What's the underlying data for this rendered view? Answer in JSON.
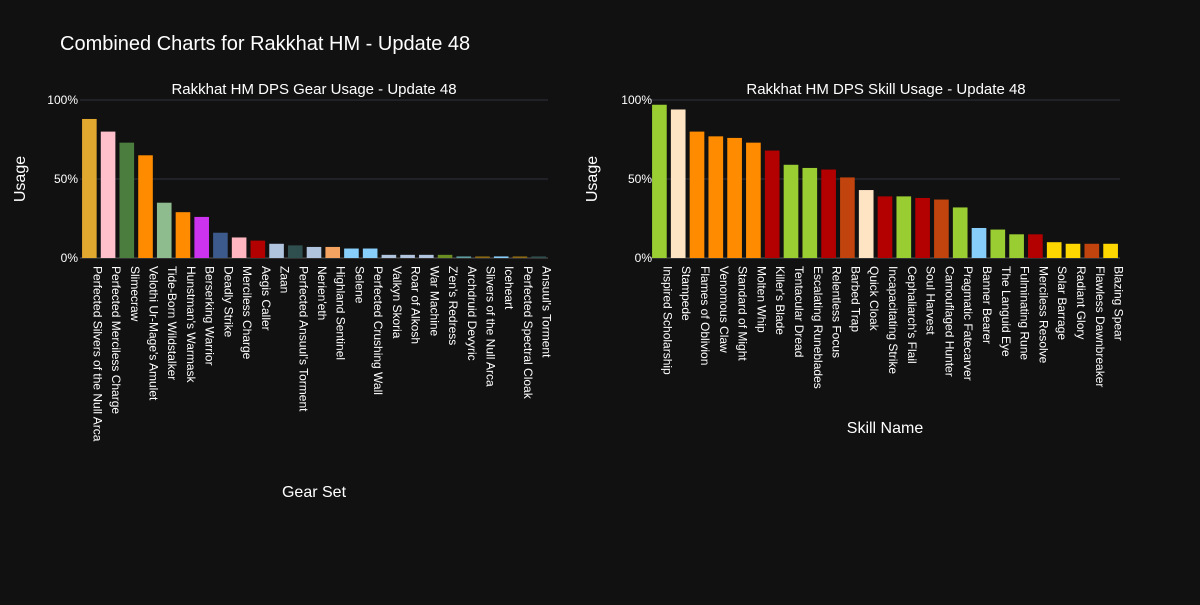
{
  "figure_title": "Combined Charts for Rakkhat HM - Update 48",
  "colors": {
    "background": "#111111",
    "text": "#ffffff",
    "grid": "#2f3340",
    "axis": "#555555"
  },
  "chart_data": [
    {
      "type": "bar",
      "title": "Rakkhat HM DPS Gear Usage - Update 48",
      "xlabel": "Gear Set",
      "ylabel": "Usage",
      "ylim": [
        0,
        100
      ],
      "yticks": [
        "0%",
        "50%",
        "100%"
      ],
      "grid": true,
      "categories": [
        "Perfected Silvers of the Null Arca",
        "Perfected Merciless Charge",
        "Slimecraw",
        "Velothi Ur-Mage's Amulet",
        "Tide-Born Wildstalker",
        "Hunstman's Warmask",
        "Berserking Warrior",
        "Deadly Strike",
        "Merciless Charge",
        "Aegis Caller",
        "Zaan",
        "Perfected Ansuul's Torment",
        "Nerien'eth",
        "Highland Sentinel",
        "Selene",
        "Perfected Crushing Wall",
        "Valkyn Skoria",
        "Roar of Alkosh",
        "War Machine",
        "Z'en's Redress",
        "Archdruid Devyric",
        "Slivers of the Null Arca",
        "Iceheart",
        "Perfected Spectral Cloak",
        "Ansuul's Torment"
      ],
      "values": [
        88,
        80,
        73,
        65,
        35,
        29,
        26,
        16,
        13,
        11,
        9,
        8,
        7,
        7,
        6,
        6,
        2,
        2,
        2,
        2,
        1,
        1,
        1,
        1,
        1
      ],
      "bar_colors": [
        "#e0a82e",
        "#ffc0cb",
        "#4b7d3f",
        "#ff8c00",
        "#8fbc8f",
        "#ff8c00",
        "#cc33ee",
        "#3d5a8c",
        "#ffb6c1",
        "#b30000",
        "#b0c4de",
        "#2f4f4f",
        "#b0c4de",
        "#f4a460",
        "#87cefa",
        "#87cefa",
        "#b0c4de",
        "#b0c4de",
        "#b0c4de",
        "#6b8e23",
        "#5f9ea0",
        "#8b6914",
        "#87cefa",
        "#8b6914",
        "#2f4f4f"
      ]
    },
    {
      "type": "bar",
      "title": "Rakkhat HM DPS Skill Usage - Update 48",
      "xlabel": "Skill Name",
      "ylabel": "Usage",
      "ylim": [
        0,
        100
      ],
      "yticks": [
        "0%",
        "50%",
        "100%"
      ],
      "grid": true,
      "categories": [
        "Inspired Scholarship",
        "Stampede",
        "Flames of Oblivion",
        "Venomous Claw",
        "Standard of Might",
        "Molten Whip",
        "Killer's Blade",
        "Tentacular Dread",
        "Escalating Runeblades",
        "Relentless Focus",
        "Barbed Trap",
        "Quick Cloak",
        "Incapacitating Strike",
        "Cephaliarch's Flail",
        "Soul Harvest",
        "Camouflaged Hunter",
        "Pragmatic Fatecarver",
        "Banner Bearer",
        "The Languid Eye",
        "Fulminating Rune",
        "Merciless Resolve",
        "Solar Barrage",
        "Radiant Glory",
        "Flawless Dawnbreaker",
        "Blazing Spear"
      ],
      "values": [
        97,
        94,
        80,
        77,
        76,
        73,
        68,
        59,
        57,
        56,
        51,
        43,
        39,
        39,
        38,
        37,
        32,
        19,
        18,
        15,
        15,
        10,
        9,
        9,
        9
      ],
      "bar_colors": [
        "#9acd32",
        "#ffe4c4",
        "#ff8c00",
        "#ff8c00",
        "#ff8c00",
        "#ff8c00",
        "#b30000",
        "#9acd32",
        "#9acd32",
        "#b30000",
        "#c1440e",
        "#ffe4c4",
        "#b30000",
        "#9acd32",
        "#b30000",
        "#c1440e",
        "#9acd32",
        "#87cefa",
        "#9acd32",
        "#9acd32",
        "#b30000",
        "#ffd700",
        "#ffd700",
        "#c1440e",
        "#ffd700"
      ]
    }
  ]
}
